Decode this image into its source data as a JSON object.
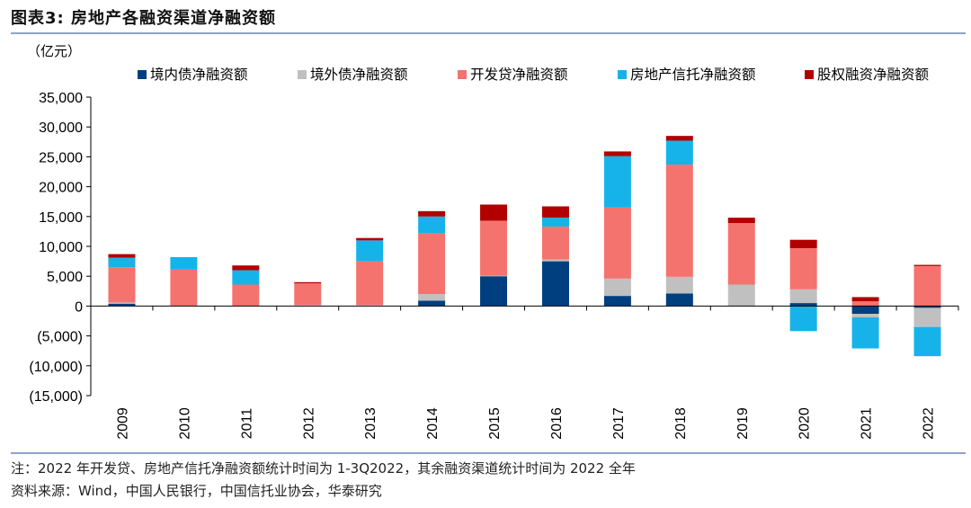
{
  "figure": {
    "title": "图表3:  房地产各融资渠道净融资额",
    "note": "注：2022 年开发贷、房地产信托净融资额统计时间为 1-3Q2022，其余融资渠道统计时间为 2022 全年",
    "source": "资料来源：Wind，中国人民银行，中国信托业协会，华泰研究"
  },
  "chart_data": {
    "type": "bar",
    "stacked": true,
    "unit_label": "（亿元）",
    "categories": [
      "2009",
      "2010",
      "2011",
      "2012",
      "2013",
      "2014",
      "2015",
      "2016",
      "2017",
      "2018",
      "2019",
      "2020",
      "2021",
      "2022"
    ],
    "ylim": [
      -15000,
      35000
    ],
    "yticks": [
      35000,
      30000,
      25000,
      20000,
      15000,
      10000,
      5000,
      0,
      -5000,
      -10000,
      -15000
    ],
    "ytick_labels": [
      "35,000",
      "30,000",
      "25,000",
      "20,000",
      "15,000",
      "10,000",
      "5,000",
      "0",
      "(5,000)",
      "(10,000)",
      "(15,000)"
    ],
    "grid": false,
    "legend_position": "top",
    "series": [
      {
        "name": "境内债净融资额",
        "color": "#003f7f",
        "values": [
          400,
          0,
          0,
          0,
          0,
          900,
          5000,
          7500,
          1700,
          2100,
          0,
          500,
          -1300,
          -300
        ]
      },
      {
        "name": "境外债净融资额",
        "color": "#c0c0c0",
        "values": [
          200,
          0,
          0,
          200,
          200,
          1100,
          100,
          300,
          2900,
          2800,
          3600,
          2300,
          -600,
          -3200
        ]
      },
      {
        "name": "开发贷净融资额",
        "color": "#f4736e",
        "values": [
          5900,
          6100,
          3600,
          3600,
          7300,
          10200,
          9200,
          5500,
          11900,
          18800,
          10300,
          6900,
          800,
          6700
        ]
      },
      {
        "name": "房地产信托净融资额",
        "color": "#16b3ea",
        "values": [
          1600,
          2100,
          2400,
          0,
          3500,
          2800,
          0,
          1500,
          8600,
          4000,
          0,
          -4200,
          -5200,
          -4900
        ]
      },
      {
        "name": "股权融资净融资额",
        "color": "#b20000",
        "values": [
          600,
          0,
          800,
          200,
          400,
          900,
          2700,
          1900,
          800,
          800,
          900,
          1400,
          700,
          200
        ]
      }
    ]
  }
}
